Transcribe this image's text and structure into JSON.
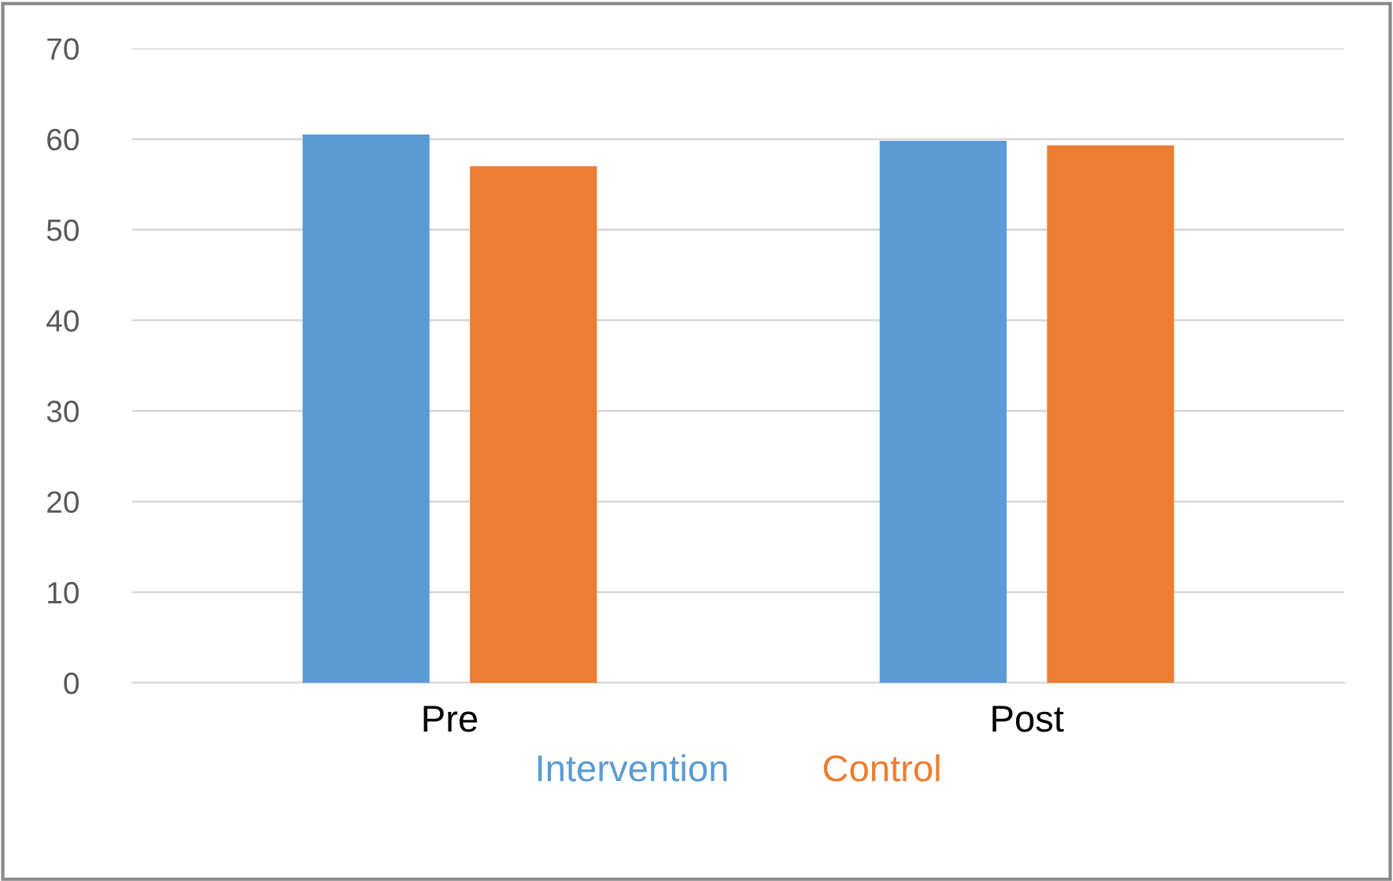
{
  "chart_data": {
    "type": "bar",
    "categories": [
      "Pre",
      "Post"
    ],
    "series": [
      {
        "name": "Intervention",
        "color": "#5b9bd5",
        "values": [
          60.5,
          59.8
        ]
      },
      {
        "name": "Control",
        "color": "#ed7d31",
        "values": [
          57.0,
          59.3
        ]
      }
    ],
    "ylim": [
      0,
      70
    ],
    "yticks": [
      0,
      10,
      20,
      30,
      40,
      50,
      60,
      70
    ],
    "grid": "y",
    "legend": "bottom"
  }
}
